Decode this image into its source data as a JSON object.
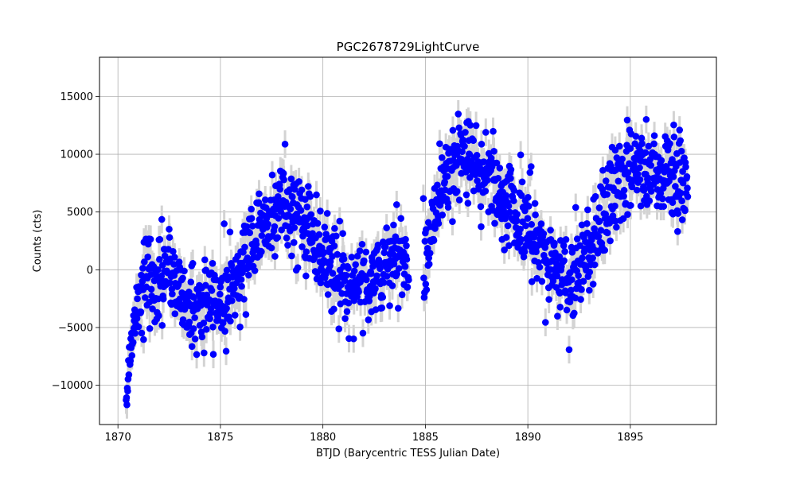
{
  "chart_data": {
    "type": "scatter",
    "title": "PGC2678729LightCurve",
    "xlabel": "BTJD (Barycentric TESS Julian Date)",
    "ylabel": "Counts (cts)",
    "xlim": [
      1869.1,
      1899.2
    ],
    "ylim": [
      -13400,
      18400
    ],
    "xticks": [
      1870,
      1875,
      1880,
      1885,
      1890,
      1895
    ],
    "yticks": [
      -10000,
      -5000,
      0,
      5000,
      10000,
      15000
    ],
    "xtick_labels": [
      "1870",
      "1875",
      "1880",
      "1885",
      "1890",
      "1895"
    ],
    "ytick_labels": [
      "−10000",
      "−5000",
      "0",
      "5000",
      "10000",
      "15000"
    ],
    "grid": true,
    "marker_color": "#0000ff",
    "errorbar_color": "#d3d3d3",
    "error_half_width": 1200,
    "anchors": [
      [
        1870.4,
        -10300
      ],
      [
        1870.7,
        -6000
      ],
      [
        1871.0,
        -3200
      ],
      [
        1871.4,
        -400
      ],
      [
        1871.8,
        -1800
      ],
      [
        1872.3,
        200
      ],
      [
        1872.8,
        -1200
      ],
      [
        1873.3,
        -2800
      ],
      [
        1873.8,
        -3400
      ],
      [
        1874.3,
        -3000
      ],
      [
        1874.8,
        -2600
      ],
      [
        1875.3,
        -2000
      ],
      [
        1875.8,
        -900
      ],
      [
        1876.3,
        1800
      ],
      [
        1876.8,
        3200
      ],
      [
        1877.3,
        4200
      ],
      [
        1877.8,
        5600
      ],
      [
        1878.3,
        5800
      ],
      [
        1878.8,
        4400
      ],
      [
        1879.3,
        3600
      ],
      [
        1879.8,
        2200
      ],
      [
        1880.3,
        400
      ],
      [
        1880.8,
        -600
      ],
      [
        1881.3,
        -1200
      ],
      [
        1881.8,
        -900
      ],
      [
        1882.3,
        -800
      ],
      [
        1882.8,
        -300
      ],
      [
        1883.3,
        300
      ],
      [
        1883.8,
        900
      ],
      [
        1884.1,
        1200
      ],
      [
        1885.0,
        800
      ],
      [
        1885.3,
        3500
      ],
      [
        1885.6,
        6800
      ],
      [
        1886.0,
        8600
      ],
      [
        1886.5,
        9300
      ],
      [
        1887.0,
        9300
      ],
      [
        1887.5,
        9000
      ],
      [
        1888.0,
        8700
      ],
      [
        1888.5,
        7200
      ],
      [
        1889.0,
        5800
      ],
      [
        1889.5,
        4600
      ],
      [
        1890.0,
        3800
      ],
      [
        1890.5,
        1900
      ],
      [
        1891.0,
        600
      ],
      [
        1891.5,
        -200
      ],
      [
        1892.0,
        -700
      ],
      [
        1892.5,
        200
      ],
      [
        1893.0,
        1800
      ],
      [
        1893.5,
        3800
      ],
      [
        1894.0,
        6200
      ],
      [
        1894.5,
        7800
      ],
      [
        1895.0,
        8300
      ],
      [
        1895.5,
        8500
      ],
      [
        1896.0,
        8700
      ],
      [
        1896.5,
        8600
      ],
      [
        1897.0,
        8400
      ],
      [
        1897.5,
        7800
      ],
      [
        1897.8,
        7400
      ]
    ],
    "gap": [
      1884.2,
      1884.9
    ],
    "n_points": 1450,
    "scatter_sd": 1900
  }
}
